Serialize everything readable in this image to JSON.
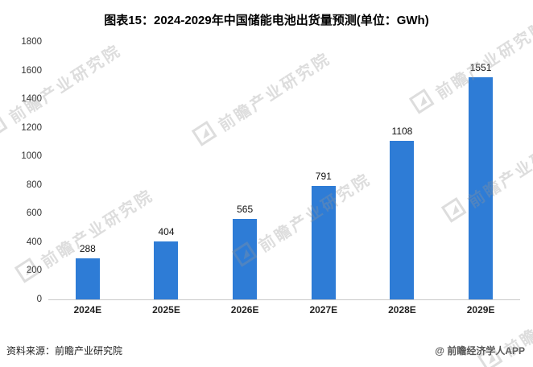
{
  "title": "图表15：2024-2029年中国储能电池出货量预测(单位：GWh)",
  "footer": {
    "source": "资料来源：前瞻产业研究院",
    "credit": "@ 前瞻经济学人APP"
  },
  "watermark": {
    "text": "前瞻产业研究院"
  },
  "chart_data": {
    "type": "bar",
    "title": "图表15：2024-2029年中国储能电池出货量预测(单位：GWh)",
    "unit": "GWh",
    "categories": [
      "2024E",
      "2025E",
      "2026E",
      "2027E",
      "2028E",
      "2029E"
    ],
    "values": [
      288,
      404,
      565,
      791,
      1108,
      1551
    ],
    "xlabel": "",
    "ylabel": "",
    "ylim": [
      0,
      1800
    ],
    "ytick_step": 200,
    "bar_color": "#2E7CD6",
    "grid": false,
    "legend_position": "none"
  }
}
